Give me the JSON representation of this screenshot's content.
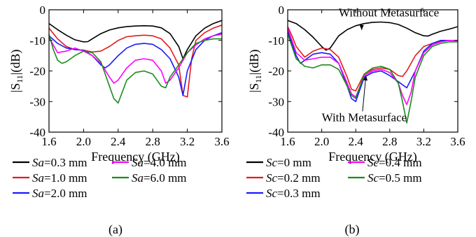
{
  "chart_data": [
    {
      "type": "line",
      "panel_label": "(a)",
      "xlabel": "Frequency (GHz)",
      "ylabel_main": "|S",
      "ylabel_sub": "11",
      "ylabel_tail": "|(dB)",
      "xlim": [
        1.6,
        3.6
      ],
      "ylim": [
        -40,
        0
      ],
      "xticks": [
        1.6,
        2.0,
        2.4,
        2.8,
        3.2,
        3.6
      ],
      "xtick_labels": [
        "1.6",
        "2.0",
        "2.4",
        "2.8",
        "3.2",
        "3.6"
      ],
      "yticks": [
        0,
        -10,
        -20,
        -30,
        -40
      ],
      "ytick_labels": [
        "0",
        "-10",
        "-20",
        "-30",
        "-40"
      ],
      "legend_param": "Sa",
      "series": [
        {
          "name": "=0.3 mm",
          "color": "#000000",
          "x": [
            1.6,
            1.7,
            1.8,
            1.9,
            2.0,
            2.05,
            2.1,
            2.2,
            2.3,
            2.4,
            2.5,
            2.6,
            2.7,
            2.8,
            2.9,
            3.0,
            3.1,
            3.15,
            3.2,
            3.3,
            3.4,
            3.5,
            3.6
          ],
          "y": [
            -4.5,
            -6.5,
            -8.3,
            -9.8,
            -10.5,
            -10.4,
            -9.5,
            -7.8,
            -6.6,
            -5.9,
            -5.5,
            -5.3,
            -5.2,
            -5.3,
            -5.9,
            -7.8,
            -12,
            -16,
            -13,
            -8.5,
            -6,
            -4.5,
            -3.5
          ]
        },
        {
          "name": "=1.0 mm",
          "color": "#e41a1c",
          "x": [
            1.6,
            1.7,
            1.8,
            1.9,
            2.0,
            2.1,
            2.2,
            2.3,
            2.4,
            2.5,
            2.6,
            2.7,
            2.8,
            2.9,
            3.0,
            3.1,
            3.15,
            3.2,
            3.25,
            3.3,
            3.4,
            3.5,
            3.6
          ],
          "y": [
            -6,
            -9.5,
            -12,
            -13,
            -13.2,
            -13.8,
            -13.5,
            -12,
            -10,
            -8.8,
            -8.5,
            -8.3,
            -8.5,
            -9.5,
            -12.5,
            -18,
            -28,
            -28.5,
            -16,
            -10,
            -7.5,
            -6,
            -5
          ]
        },
        {
          "name": "=2.0 mm",
          "color": "#1a1aff",
          "x": [
            1.6,
            1.7,
            1.8,
            1.9,
            2.0,
            2.1,
            2.2,
            2.25,
            2.3,
            2.4,
            2.5,
            2.6,
            2.7,
            2.8,
            2.9,
            3.0,
            3.1,
            3.15,
            3.2,
            3.3,
            3.4,
            3.5,
            3.6
          ],
          "y": [
            -8.5,
            -11,
            -12.5,
            -13,
            -13.2,
            -15,
            -18,
            -19,
            -18,
            -15,
            -12.5,
            -11.3,
            -11,
            -11.3,
            -13,
            -16,
            -22,
            -28,
            -20,
            -13,
            -10,
            -8.5,
            -7.5
          ]
        },
        {
          "name": "=4.0 mm",
          "color": "#ff00ff",
          "x": [
            1.6,
            1.7,
            1.8,
            1.9,
            2.0,
            2.1,
            2.2,
            2.3,
            2.35,
            2.4,
            2.5,
            2.6,
            2.7,
            2.8,
            2.9,
            2.95,
            3.0,
            3.1,
            3.2,
            3.3,
            3.4,
            3.5,
            3.6
          ],
          "y": [
            -9,
            -14,
            -13.5,
            -12.5,
            -13.5,
            -15,
            -17.5,
            -22,
            -24,
            -23,
            -19,
            -16.5,
            -16,
            -16.5,
            -20,
            -24,
            -23,
            -19,
            -14,
            -11.5,
            -9.5,
            -8.5,
            -8
          ]
        },
        {
          "name": "=6.0 mm",
          "color": "#1a8c1a",
          "x": [
            1.6,
            1.65,
            1.7,
            1.75,
            1.8,
            1.9,
            2.0,
            2.1,
            2.2,
            2.3,
            2.35,
            2.4,
            2.5,
            2.6,
            2.7,
            2.8,
            2.9,
            2.95,
            3.0,
            3.1,
            3.2,
            3.3,
            3.4,
            3.5,
            3.6
          ],
          "y": [
            -8,
            -13,
            -16.5,
            -17.5,
            -17,
            -15,
            -13.5,
            -14,
            -17,
            -25,
            -29,
            -30.5,
            -23,
            -20.5,
            -20,
            -21,
            -25,
            -25.5,
            -22,
            -18,
            -14,
            -11,
            -10,
            -9.5,
            -9.5
          ]
        }
      ]
    },
    {
      "type": "line",
      "panel_label": "(b)",
      "xlabel": "Frequency (GHz)",
      "ylabel_main": "|S",
      "ylabel_sub": "11",
      "ylabel_tail": "|(dB)",
      "xlim": [
        1.6,
        3.6
      ],
      "ylim": [
        -40,
        0
      ],
      "xticks": [
        1.6,
        2.0,
        2.4,
        2.8,
        3.2,
        3.6
      ],
      "xtick_labels": [
        "1.6",
        "2.0",
        "2.4",
        "2.8",
        "3.2",
        "3.6"
      ],
      "yticks": [
        0,
        -10,
        -20,
        -30,
        -40
      ],
      "ytick_labels": [
        "0",
        "-10",
        "-20",
        "-30",
        "-40"
      ],
      "legend_param": "Sc",
      "annotations": [
        {
          "text": "Without Metasurface",
          "tx": 2.2,
          "ty": -2.2,
          "ax": 2.47,
          "ay": -4.8,
          "hx": 2.47,
          "hy": -6.6
        },
        {
          "text": "With Metasurface",
          "tx": 2.0,
          "ty": -36.5,
          "ax": 2.48,
          "ay": -33.2,
          "hx": 2.52,
          "hy": -21.5
        }
      ],
      "series": [
        {
          "name": "=0 mm",
          "color": "#000000",
          "x": [
            1.6,
            1.7,
            1.8,
            1.9,
            2.0,
            2.05,
            2.1,
            2.15,
            2.2,
            2.3,
            2.4,
            2.5,
            2.6,
            2.7,
            2.8,
            2.9,
            3.0,
            3.1,
            3.2,
            3.25,
            3.3,
            3.4,
            3.5,
            3.6
          ],
          "y": [
            -3.5,
            -4.5,
            -6.5,
            -9,
            -12,
            -13.2,
            -12.5,
            -10.5,
            -8.5,
            -6.5,
            -5.2,
            -4.5,
            -4.1,
            -4.0,
            -4.2,
            -4.8,
            -6,
            -7.5,
            -8.5,
            -8.6,
            -8,
            -7,
            -6.3,
            -5.5
          ]
        },
        {
          "name": "=0.2 mm",
          "color": "#e41a1c",
          "x": [
            1.6,
            1.65,
            1.7,
            1.8,
            1.9,
            2.0,
            2.1,
            2.2,
            2.3,
            2.35,
            2.4,
            2.5,
            2.6,
            2.7,
            2.8,
            2.9,
            2.95,
            3.0,
            3.1,
            3.2,
            3.3,
            3.4,
            3.5,
            3.6
          ],
          "y": [
            -5.5,
            -8.5,
            -12,
            -15.5,
            -13.5,
            -12.5,
            -13,
            -15.5,
            -22,
            -26,
            -26.5,
            -21,
            -19.5,
            -19,
            -19.5,
            -21.5,
            -21.8,
            -20,
            -15,
            -12,
            -11,
            -10.3,
            -10,
            -10
          ]
        },
        {
          "name": "=0.3 mm",
          "color": "#1a1aff",
          "x": [
            1.6,
            1.65,
            1.7,
            1.75,
            1.8,
            1.9,
            2.0,
            2.1,
            2.2,
            2.3,
            2.35,
            2.4,
            2.5,
            2.6,
            2.7,
            2.8,
            2.9,
            3.0,
            3.1,
            3.2,
            3.3,
            3.4,
            3.5,
            3.6
          ],
          "y": [
            -7,
            -11,
            -15,
            -17.5,
            -16.5,
            -14.5,
            -14,
            -14.5,
            -17.5,
            -25,
            -29,
            -30,
            -22,
            -20.5,
            -20,
            -21.5,
            -23.5,
            -25.5,
            -20,
            -13.5,
            -11,
            -10,
            -10,
            -10
          ]
        },
        {
          "name": "=0.4 mm",
          "color": "#ff00ff",
          "x": [
            1.6,
            1.65,
            1.7,
            1.8,
            1.9,
            2.0,
            2.1,
            2.2,
            2.3,
            2.35,
            2.4,
            2.5,
            2.6,
            2.7,
            2.8,
            2.9,
            2.95,
            3.0,
            3.05,
            3.1,
            3.2,
            3.3,
            3.4,
            3.5,
            3.6
          ],
          "y": [
            -6,
            -10,
            -14,
            -16.5,
            -16,
            -15.5,
            -15.5,
            -17.5,
            -24,
            -27.5,
            -28.5,
            -21.5,
            -20,
            -19.5,
            -20.5,
            -24,
            -28,
            -31,
            -27,
            -20,
            -14,
            -11.5,
            -10.5,
            -10,
            -10
          ]
        },
        {
          "name": "=0.5 mm",
          "color": "#1a8c1a",
          "x": [
            1.6,
            1.65,
            1.7,
            1.8,
            1.9,
            2.0,
            2.1,
            2.2,
            2.3,
            2.35,
            2.4,
            2.5,
            2.6,
            2.7,
            2.8,
            2.9,
            2.95,
            3.0,
            3.05,
            3.1,
            3.2,
            3.3,
            3.4,
            3.5,
            3.6
          ],
          "y": [
            -8,
            -12,
            -16,
            -18.5,
            -19,
            -18,
            -18,
            -19.5,
            -25,
            -28,
            -29,
            -21,
            -19,
            -18.5,
            -19.5,
            -24,
            -30,
            -37,
            -30,
            -22,
            -15,
            -12,
            -11,
            -10.5,
            -10.5
          ]
        }
      ]
    }
  ]
}
